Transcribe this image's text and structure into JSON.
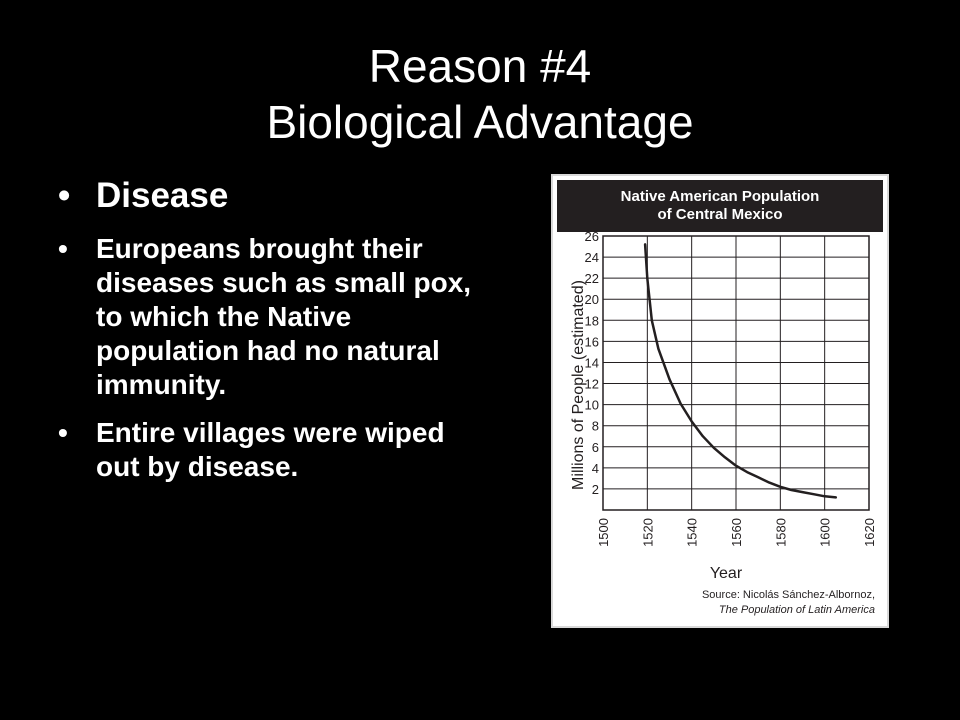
{
  "slide": {
    "title_line1": "Reason #4",
    "title_line2": "Biological Advantage",
    "bullet_symbol": "•",
    "bullets": [
      "Disease",
      "Europeans brought their diseases such as small pox, to which the Native population had no natural immunity.",
      "Entire villages were wiped out by disease."
    ]
  },
  "chart_data": {
    "type": "line",
    "title": "Native American Population of Central Mexico",
    "title_line1": "Native American Population",
    "title_line2": "of Central Mexico",
    "xlabel": "Year",
    "ylabel": "Millions of People (estimated)",
    "xlim": [
      1500,
      1620
    ],
    "ylim": [
      0,
      26
    ],
    "x_ticks": [
      1500,
      1520,
      1540,
      1560,
      1580,
      1600,
      1620
    ],
    "y_ticks": [
      2,
      4,
      6,
      8,
      10,
      12,
      14,
      16,
      18,
      20,
      22,
      24,
      26
    ],
    "grid": true,
    "series": [
      {
        "x": [
          1519,
          1520,
          1522,
          1525,
          1530,
          1535,
          1540,
          1545,
          1550,
          1555,
          1560,
          1565,
          1570,
          1575,
          1580,
          1585,
          1590,
          1595,
          1600,
          1605
        ],
        "y": [
          25.2,
          22.0,
          18.0,
          15.3,
          12.4,
          10.1,
          8.4,
          7.0,
          5.9,
          5.0,
          4.2,
          3.6,
          3.1,
          2.6,
          2.2,
          1.9,
          1.7,
          1.5,
          1.3,
          1.2
        ]
      }
    ],
    "source_line1": "Source: Nicolás Sánchez-Albornoz,",
    "source_line2": "The Population of Latin America"
  }
}
